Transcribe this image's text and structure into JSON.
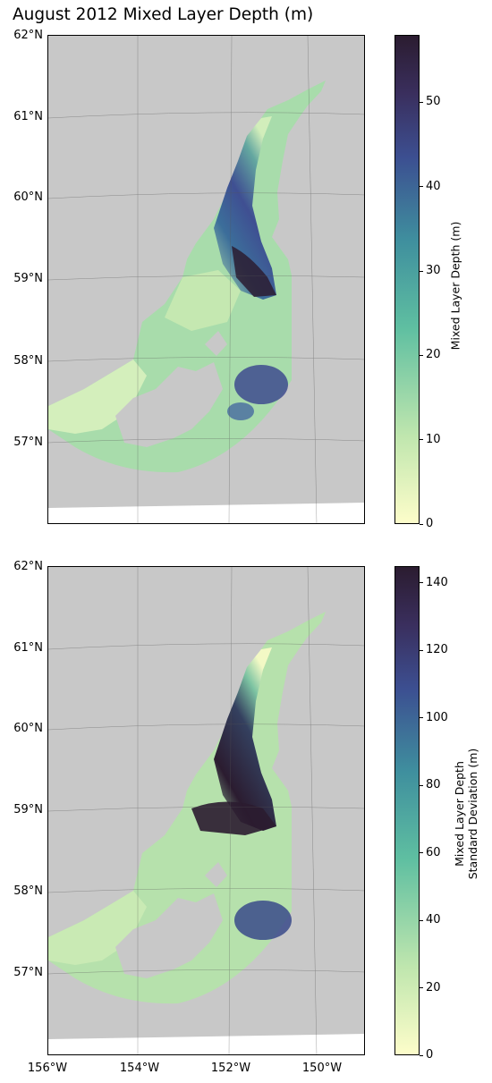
{
  "title": "August 2012 Mixed Layer Depth (m)",
  "lat_labels": [
    "62°N",
    "61°N",
    "60°N",
    "59°N",
    "58°N",
    "57°N"
  ],
  "lon_labels": [
    "156°W",
    "154°W",
    "152°W",
    "150°W"
  ],
  "panels": [
    {
      "colorbar_label_line1": "Mixed Layer Depth (m)",
      "colorbar_label_line2": "",
      "colorbar_ticks": [
        "0",
        "10",
        "20",
        "30",
        "40",
        "50"
      ],
      "colorbar_range": [
        0,
        58
      ]
    },
    {
      "colorbar_label_line1": "Mixed Layer Depth",
      "colorbar_label_line2": "Standard Deviation (m)",
      "colorbar_ticks": [
        "0",
        "20",
        "40",
        "60",
        "80",
        "100",
        "120",
        "140"
      ],
      "colorbar_range": [
        0,
        145
      ]
    }
  ],
  "colors": {
    "land": "#c8c8c8",
    "cmap_low": "#fdfdca",
    "cmap_mid": "#5fbfa1",
    "cmap_high": "#2b1c30"
  }
}
